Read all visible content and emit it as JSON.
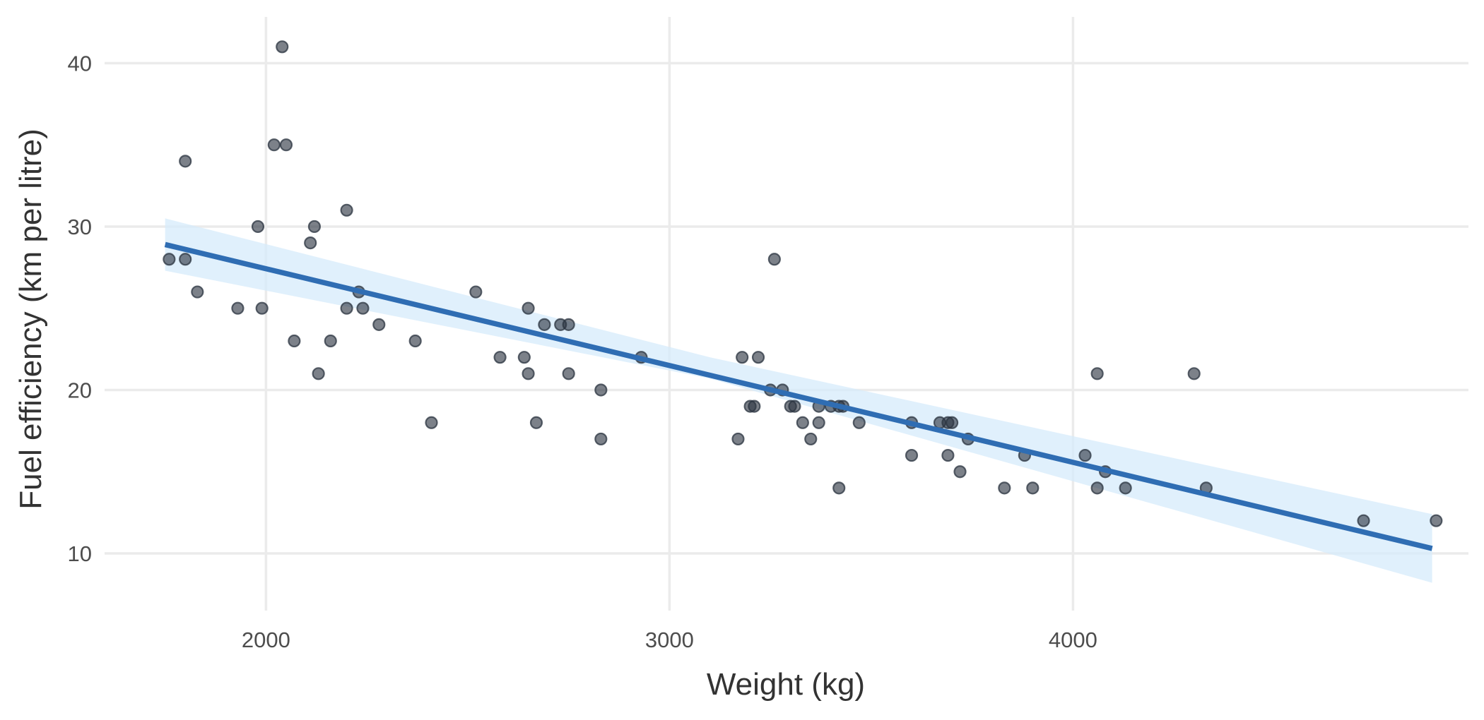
{
  "chart_data": {
    "type": "scatter",
    "title": "",
    "xlabel": "Weight (kg)",
    "ylabel": "Fuel efficiency (km per litre)",
    "xlim": [
      1600,
      4980
    ],
    "ylim": [
      6.5,
      43
    ],
    "x_ticks": [
      2000,
      3000,
      4000
    ],
    "y_ticks": [
      10,
      20,
      30,
      40
    ],
    "x_tick_labels": [
      "2000",
      "3000",
      "4000"
    ],
    "y_tick_labels": [
      "10",
      "20",
      "30",
      "40"
    ],
    "grid": true,
    "legend": "none",
    "colors": {
      "points": "#2b3440",
      "fit_line": "#2f6db3",
      "confidence_band": "#d6ebfb",
      "grid": "#ebebeb"
    },
    "points": [
      {
        "x": 1760,
        "y": 28
      },
      {
        "x": 1800,
        "y": 28
      },
      {
        "x": 1800,
        "y": 34
      },
      {
        "x": 1830,
        "y": 26
      },
      {
        "x": 1930,
        "y": 25
      },
      {
        "x": 1980,
        "y": 30
      },
      {
        "x": 1990,
        "y": 25
      },
      {
        "x": 2020,
        "y": 35
      },
      {
        "x": 2040,
        "y": 41
      },
      {
        "x": 2050,
        "y": 35
      },
      {
        "x": 2070,
        "y": 23
      },
      {
        "x": 2110,
        "y": 29
      },
      {
        "x": 2120,
        "y": 30
      },
      {
        "x": 2130,
        "y": 21
      },
      {
        "x": 2160,
        "y": 23
      },
      {
        "x": 2200,
        "y": 31
      },
      {
        "x": 2200,
        "y": 25
      },
      {
        "x": 2230,
        "y": 26
      },
      {
        "x": 2240,
        "y": 25
      },
      {
        "x": 2280,
        "y": 24
      },
      {
        "x": 2370,
        "y": 23
      },
      {
        "x": 2410,
        "y": 18
      },
      {
        "x": 2520,
        "y": 26
      },
      {
        "x": 2580,
        "y": 22
      },
      {
        "x": 2640,
        "y": 22
      },
      {
        "x": 2650,
        "y": 25
      },
      {
        "x": 2650,
        "y": 21
      },
      {
        "x": 2670,
        "y": 18
      },
      {
        "x": 2690,
        "y": 24
      },
      {
        "x": 2730,
        "y": 24
      },
      {
        "x": 2750,
        "y": 24
      },
      {
        "x": 2750,
        "y": 21
      },
      {
        "x": 2830,
        "y": 20
      },
      {
        "x": 2830,
        "y": 17
      },
      {
        "x": 2930,
        "y": 22
      },
      {
        "x": 3170,
        "y": 17
      },
      {
        "x": 3180,
        "y": 22
      },
      {
        "x": 3200,
        "y": 19
      },
      {
        "x": 3210,
        "y": 19
      },
      {
        "x": 3220,
        "y": 22
      },
      {
        "x": 3250,
        "y": 20
      },
      {
        "x": 3260,
        "y": 28
      },
      {
        "x": 3280,
        "y": 20
      },
      {
        "x": 3300,
        "y": 19
      },
      {
        "x": 3310,
        "y": 19
      },
      {
        "x": 3330,
        "y": 18
      },
      {
        "x": 3350,
        "y": 17
      },
      {
        "x": 3370,
        "y": 18
      },
      {
        "x": 3370,
        "y": 19
      },
      {
        "x": 3400,
        "y": 19
      },
      {
        "x": 3420,
        "y": 19
      },
      {
        "x": 3420,
        "y": 14
      },
      {
        "x": 3430,
        "y": 19
      },
      {
        "x": 3470,
        "y": 18
      },
      {
        "x": 3600,
        "y": 18
      },
      {
        "x": 3600,
        "y": 16
      },
      {
        "x": 3670,
        "y": 18
      },
      {
        "x": 3690,
        "y": 18
      },
      {
        "x": 3690,
        "y": 16
      },
      {
        "x": 3700,
        "y": 18
      },
      {
        "x": 3720,
        "y": 15
      },
      {
        "x": 3740,
        "y": 17
      },
      {
        "x": 3830,
        "y": 14
      },
      {
        "x": 3880,
        "y": 16
      },
      {
        "x": 3900,
        "y": 14
      },
      {
        "x": 4030,
        "y": 16
      },
      {
        "x": 4060,
        "y": 14
      },
      {
        "x": 4060,
        "y": 21
      },
      {
        "x": 4080,
        "y": 15
      },
      {
        "x": 4130,
        "y": 14
      },
      {
        "x": 4300,
        "y": 21
      },
      {
        "x": 4330,
        "y": 14
      },
      {
        "x": 4720,
        "y": 12
      },
      {
        "x": 4900,
        "y": 12
      }
    ],
    "fit_line": {
      "method": "linear",
      "x": [
        1750,
        4890
      ],
      "y": [
        28.9,
        10.3
      ],
      "band_x": [
        1750,
        3100,
        4890
      ],
      "band_lower": [
        27.3,
        20.7,
        8.2
      ],
      "band_upper": [
        30.5,
        22.0,
        12.4
      ]
    }
  }
}
